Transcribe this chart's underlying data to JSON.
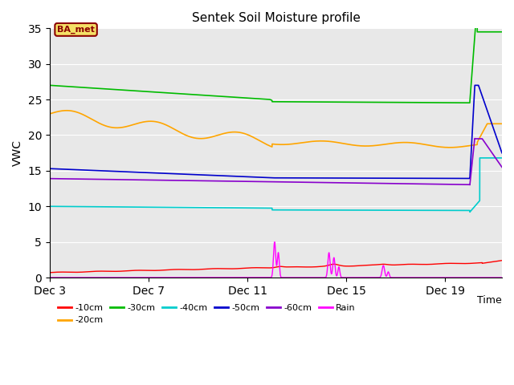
{
  "title": "Sentek Soil Moisture profile",
  "xlabel": "Time",
  "ylabel": "VWC",
  "annotation": "BA_met",
  "ylim": [
    0,
    35
  ],
  "background_color": "#e8e8e8",
  "legend_entries": [
    "-10cm",
    "-20cm",
    "-30cm",
    "-40cm",
    "-50cm",
    "-60cm",
    "Rain"
  ],
  "legend_colors": [
    "#ff0000",
    "#ffa500",
    "#00bb00",
    "#00cccc",
    "#0000cc",
    "#8800cc",
    "#ff00ff"
  ],
  "xtick_labels": [
    "Dec 3",
    "Dec 7",
    "Dec 11",
    "Dec 15",
    "Dec 19"
  ],
  "xtick_positions": [
    3,
    7,
    11,
    15,
    19
  ],
  "xlim": [
    3,
    21.3
  ],
  "yticks": [
    0,
    5,
    10,
    15,
    20,
    25,
    30,
    35
  ]
}
